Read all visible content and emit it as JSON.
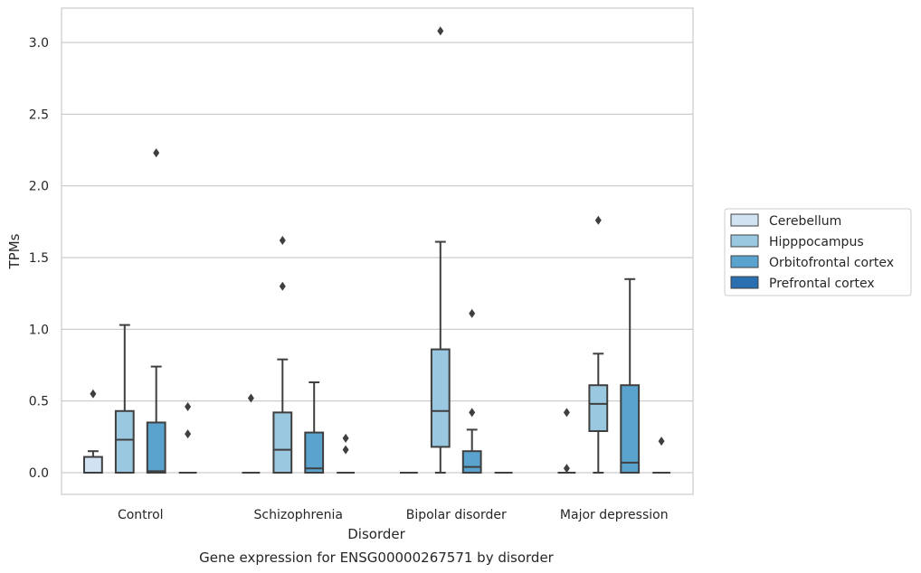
{
  "chart_data": {
    "type": "box",
    "caption": "Gene expression for ENSG00000267571 by disorder",
    "xlabel": "Disorder",
    "ylabel": "TPMs",
    "ylim": [
      -0.15,
      3.25
    ],
    "yticks": [
      "0.0",
      "0.5",
      "1.0",
      "1.5",
      "2.0",
      "2.5",
      "3.0"
    ],
    "categories": [
      "Control",
      "Schizophrenia",
      "Bipolar disorder",
      "Major depression"
    ],
    "grid": true,
    "legend_position": "right",
    "series": [
      {
        "name": "Cerebellum",
        "color": "#d1e2f2",
        "boxes": [
          {
            "q1": 0.0,
            "median": 0.0,
            "q3": 0.11,
            "whislo": 0.0,
            "whishi": 0.15,
            "fliers": [
              0.55
            ]
          },
          {
            "q1": 0.0,
            "median": 0.0,
            "q3": 0.0,
            "whislo": 0.0,
            "whishi": 0.0,
            "fliers": [
              0.52
            ]
          },
          {
            "q1": 0.0,
            "median": 0.0,
            "q3": 0.0,
            "whislo": 0.0,
            "whishi": 0.0,
            "fliers": []
          },
          {
            "q1": 0.0,
            "median": 0.0,
            "q3": 0.0,
            "whislo": 0.0,
            "whishi": 0.0,
            "fliers": [
              0.42,
              0.03
            ]
          }
        ]
      },
      {
        "name": "Hipppocampus",
        "color": "#9ac8e0",
        "boxes": [
          {
            "q1": 0.0,
            "median": 0.23,
            "q3": 0.43,
            "whislo": 0.0,
            "whishi": 1.03,
            "fliers": []
          },
          {
            "q1": 0.0,
            "median": 0.16,
            "q3": 0.42,
            "whislo": 0.0,
            "whishi": 0.79,
            "fliers": [
              1.3,
              1.62
            ]
          },
          {
            "q1": 0.18,
            "median": 0.43,
            "q3": 0.86,
            "whislo": 0.0,
            "whishi": 1.61,
            "fliers": [
              3.08
            ]
          },
          {
            "q1": 0.29,
            "median": 0.48,
            "q3": 0.61,
            "whislo": 0.0,
            "whishi": 0.83,
            "fliers": [
              1.76
            ]
          }
        ]
      },
      {
        "name": "Orbitofrontal cortex",
        "color": "#5ba3cf",
        "boxes": [
          {
            "q1": 0.0,
            "median": 0.01,
            "q3": 0.35,
            "whislo": 0.0,
            "whishi": 0.74,
            "fliers": [
              2.23
            ]
          },
          {
            "q1": 0.0,
            "median": 0.03,
            "q3": 0.28,
            "whislo": 0.0,
            "whishi": 0.63,
            "fliers": []
          },
          {
            "q1": 0.0,
            "median": 0.04,
            "q3": 0.15,
            "whislo": 0.0,
            "whishi": 0.3,
            "fliers": [
              0.42,
              1.11
            ]
          },
          {
            "q1": 0.0,
            "median": 0.07,
            "q3": 0.61,
            "whislo": 0.0,
            "whishi": 1.35,
            "fliers": []
          }
        ]
      },
      {
        "name": "Prefrontal cortex",
        "color": "#2a6fb0",
        "boxes": [
          {
            "q1": 0.0,
            "median": 0.0,
            "q3": 0.0,
            "whislo": 0.0,
            "whishi": 0.0,
            "fliers": [
              0.27,
              0.46
            ]
          },
          {
            "q1": 0.0,
            "median": 0.0,
            "q3": 0.0,
            "whislo": 0.0,
            "whishi": 0.0,
            "fliers": [
              0.16,
              0.24
            ]
          },
          {
            "q1": 0.0,
            "median": 0.0,
            "q3": 0.0,
            "whislo": 0.0,
            "whishi": 0.0,
            "fliers": []
          },
          {
            "q1": 0.0,
            "median": 0.0,
            "q3": 0.0,
            "whislo": 0.0,
            "whishi": 0.0,
            "fliers": [
              0.22
            ]
          }
        ]
      }
    ]
  }
}
